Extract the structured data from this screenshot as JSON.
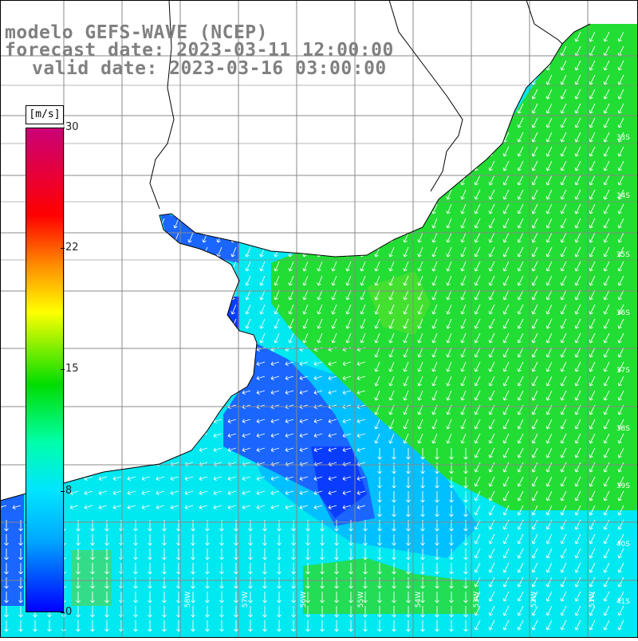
{
  "map": {
    "title_model": "modelo GEFS-WAVE (NCEP)",
    "title_forecast": "forecast date: 2023-03-11 12:00:00",
    "title_valid": "valid date: 2023-03-16 03:00:00",
    "variable": "wind speed and direction",
    "units": "[m/s]",
    "colorbar": {
      "min": 0,
      "max": 30,
      "tick_labels": [
        "30",
        "22",
        "15",
        "8",
        "0"
      ],
      "tick_values": [
        30,
        22,
        15,
        8,
        0
      ],
      "colors": [
        "#0000ff",
        "#00aaff",
        "#00e5ff",
        "#00ffaa",
        "#00dd00",
        "#ffff00",
        "#ff8800",
        "#ff0000",
        "#cc0077"
      ]
    },
    "lon_labels": [
      "58W",
      "57W",
      "56W",
      "55W",
      "54W",
      "53W",
      "52W",
      "51W"
    ],
    "lat_labels": [
      "33S",
      "34S",
      "35S",
      "36S",
      "37S",
      "38S",
      "39S",
      "40S",
      "41S"
    ],
    "colors": {
      "land": "#ffffff",
      "grid": "#888888",
      "coast": "#000000",
      "arrow": "#ffffff",
      "title": "#808080"
    }
  }
}
